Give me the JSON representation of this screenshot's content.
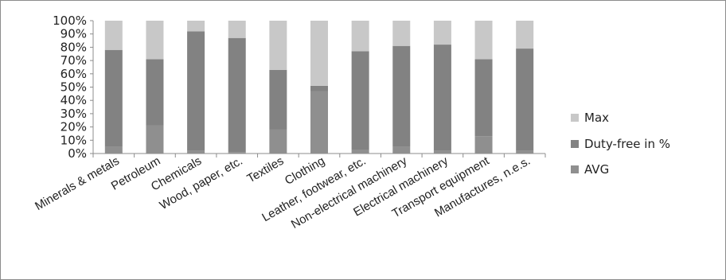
{
  "chart_data": {
    "type": "bar",
    "stacked": true,
    "categories": [
      "Minerals & metals",
      "Petroleum",
      "Chemicals",
      "Wood, paper, etc.",
      "Textiles",
      "Clothing",
      "Leather, footwear, etc.",
      "Non-electrical machinery",
      "Electrical machinery",
      "Transport equipment",
      "Manufactures, n.e.s."
    ],
    "series": [
      {
        "name": "AVG",
        "color": "#8f8f8f",
        "values": [
          5,
          21,
          2,
          1,
          18,
          47,
          3,
          5,
          2,
          13,
          2
        ]
      },
      {
        "name": "Duty-free in %",
        "color": "#828282",
        "values": [
          73,
          50,
          90,
          86,
          45,
          4,
          74,
          76,
          80,
          58,
          77
        ]
      },
      {
        "name": "Max",
        "color": "#c8c8c8",
        "values": [
          22,
          29,
          8,
          13,
          37,
          49,
          23,
          19,
          18,
          29,
          21
        ]
      }
    ],
    "y_ticks": [
      "0%",
      "10%",
      "20%",
      "30%",
      "40%",
      "50%",
      "60%",
      "70%",
      "80%",
      "90%",
      "100%"
    ],
    "ylim": [
      0,
      100
    ],
    "grid": false,
    "legend_position": "right",
    "legend_order": [
      "Max",
      "Duty-free in %",
      "AVG"
    ]
  }
}
